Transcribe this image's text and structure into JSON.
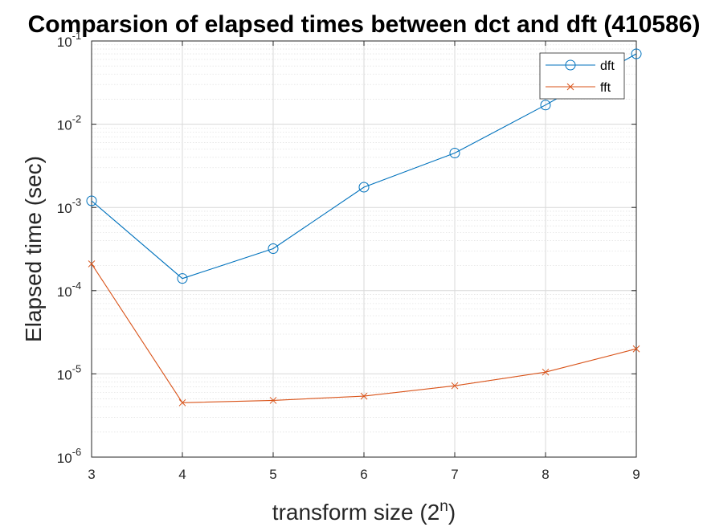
{
  "chart_data": {
    "type": "line",
    "title": "Comparsion of elapsed times between dct and dft (410586)",
    "xlabel": {
      "base": "transform size (2",
      "sup": "n",
      "end": ")"
    },
    "ylabel": "Elapsed time (sec)",
    "x": [
      3,
      4,
      5,
      6,
      7,
      8,
      9
    ],
    "xlim": [
      3,
      9
    ],
    "ylim": [
      1e-06,
      0.1
    ],
    "yscale": "log",
    "grid": true,
    "legend_position": "top-right",
    "x_ticks": [
      "3",
      "4",
      "5",
      "6",
      "7",
      "8",
      "9"
    ],
    "y_ticks": [
      {
        "base": "10",
        "exp": "-6"
      },
      {
        "base": "10",
        "exp": "-5"
      },
      {
        "base": "10",
        "exp": "-4"
      },
      {
        "base": "10",
        "exp": "-3"
      },
      {
        "base": "10",
        "exp": "-2"
      },
      {
        "base": "10",
        "exp": "-1"
      }
    ],
    "series": [
      {
        "name": "dft",
        "marker": "circle",
        "color": "#0072BD",
        "values": [
          0.0012,
          0.00014,
          0.00032,
          0.00175,
          0.0045,
          0.017,
          0.07
        ]
      },
      {
        "name": "fft",
        "marker": "x",
        "color": "#D95319",
        "values": [
          0.00021,
          4.5e-06,
          4.8e-06,
          5.4e-06,
          7.2e-06,
          1.05e-05,
          2e-05
        ]
      }
    ]
  }
}
